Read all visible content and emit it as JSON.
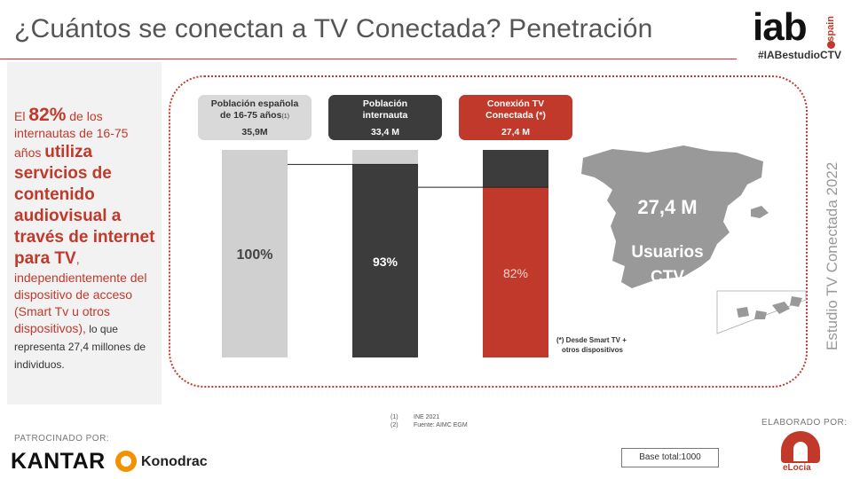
{
  "page": {
    "title": "¿Cuántos se conectan a TV Conectada? Penetración",
    "hashtag": "#IABestudioCTV",
    "logo": {
      "main": "iab",
      "sub": "spain"
    },
    "vertical_label": "Estudio TV Conectada 2022"
  },
  "side": {
    "t1": "El ",
    "pct": "82%",
    "t2": " de los internautas de 16-75 años ",
    "bold": "utiliza servicios de contenido audiovisual a través de internet para TV",
    "t3": ", independientemente del dispositivo de acceso (Smart Tv u otros dispositivos),",
    "t4": " lo que representa 27,4 millones de individuos."
  },
  "chart_data": {
    "type": "bar",
    "categories": [
      "Población española de 16-75 años",
      "Población internauta",
      "Conexión TV Conectada (*)"
    ],
    "category_notes": [
      "(1)",
      "",
      ""
    ],
    "category_values": [
      "35,9M",
      "33,4 M",
      "27,4 M"
    ],
    "values": [
      100,
      93,
      82
    ],
    "data_labels": [
      "100%",
      "93%",
      "82%"
    ],
    "ylim": [
      0,
      100
    ],
    "colors": {
      "bar1": "#d0d0d0",
      "bar2": "#3c3c3c",
      "bar3": "#c0392b",
      "remainder": "#3c3c3c",
      "remainder_first": "#d0d0d0",
      "header1": "#d9d9d9",
      "header2": "#3c3c3c",
      "header3": "#c0392b"
    }
  },
  "map": {
    "value": "27,4 M",
    "line1": "Usuarios",
    "line2": "CTV",
    "color": "#999999"
  },
  "footnote": {
    "line1": "(*) Desde  Smart TV +",
    "line2": "otros  dispositivos"
  },
  "sources": [
    {
      "n": "(1)",
      "text": "INE 2021"
    },
    {
      "n": "(2)",
      "text": "Fuente: AIMC EGM"
    }
  ],
  "footer": {
    "patrocinado": "PATROCINADO  POR:",
    "kantar": "KANTAR",
    "konodrac": "Konodrac",
    "base": "Base total:1000",
    "elaborado": "ELABORADO  POR:",
    "elocia": "eLocia"
  }
}
